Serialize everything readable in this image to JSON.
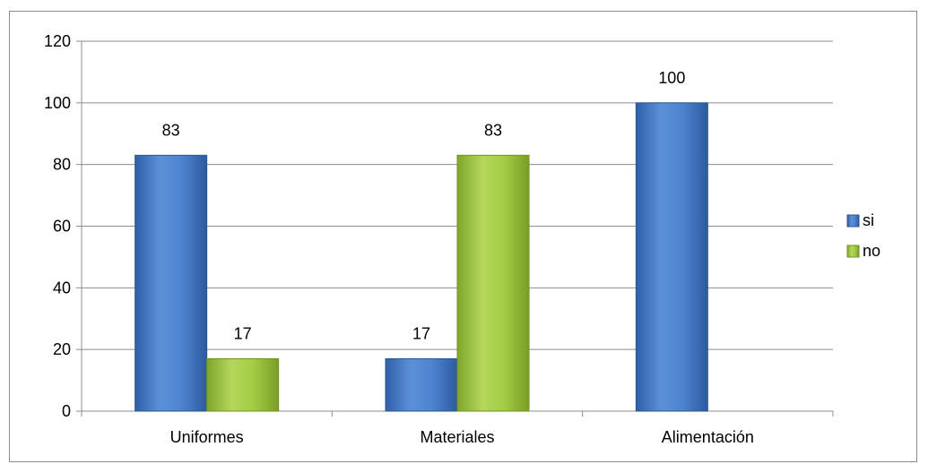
{
  "chart_data": {
    "type": "bar",
    "categories": [
      "Uniformes",
      "Materiales",
      "Alimentación"
    ],
    "series": [
      {
        "name": "si",
        "values": [
          83,
          17,
          100
        ],
        "color": "#4a7fc9"
      },
      {
        "name": "no",
        "values": [
          17,
          83,
          null
        ],
        "color": "#9bc43a"
      }
    ],
    "ylim": [
      0,
      120
    ],
    "yticks": [
      0,
      20,
      40,
      60,
      80,
      100,
      120
    ],
    "grid": true,
    "legend_position": "right",
    "data_labels": true,
    "title": "",
    "xlabel": "",
    "ylabel": ""
  }
}
